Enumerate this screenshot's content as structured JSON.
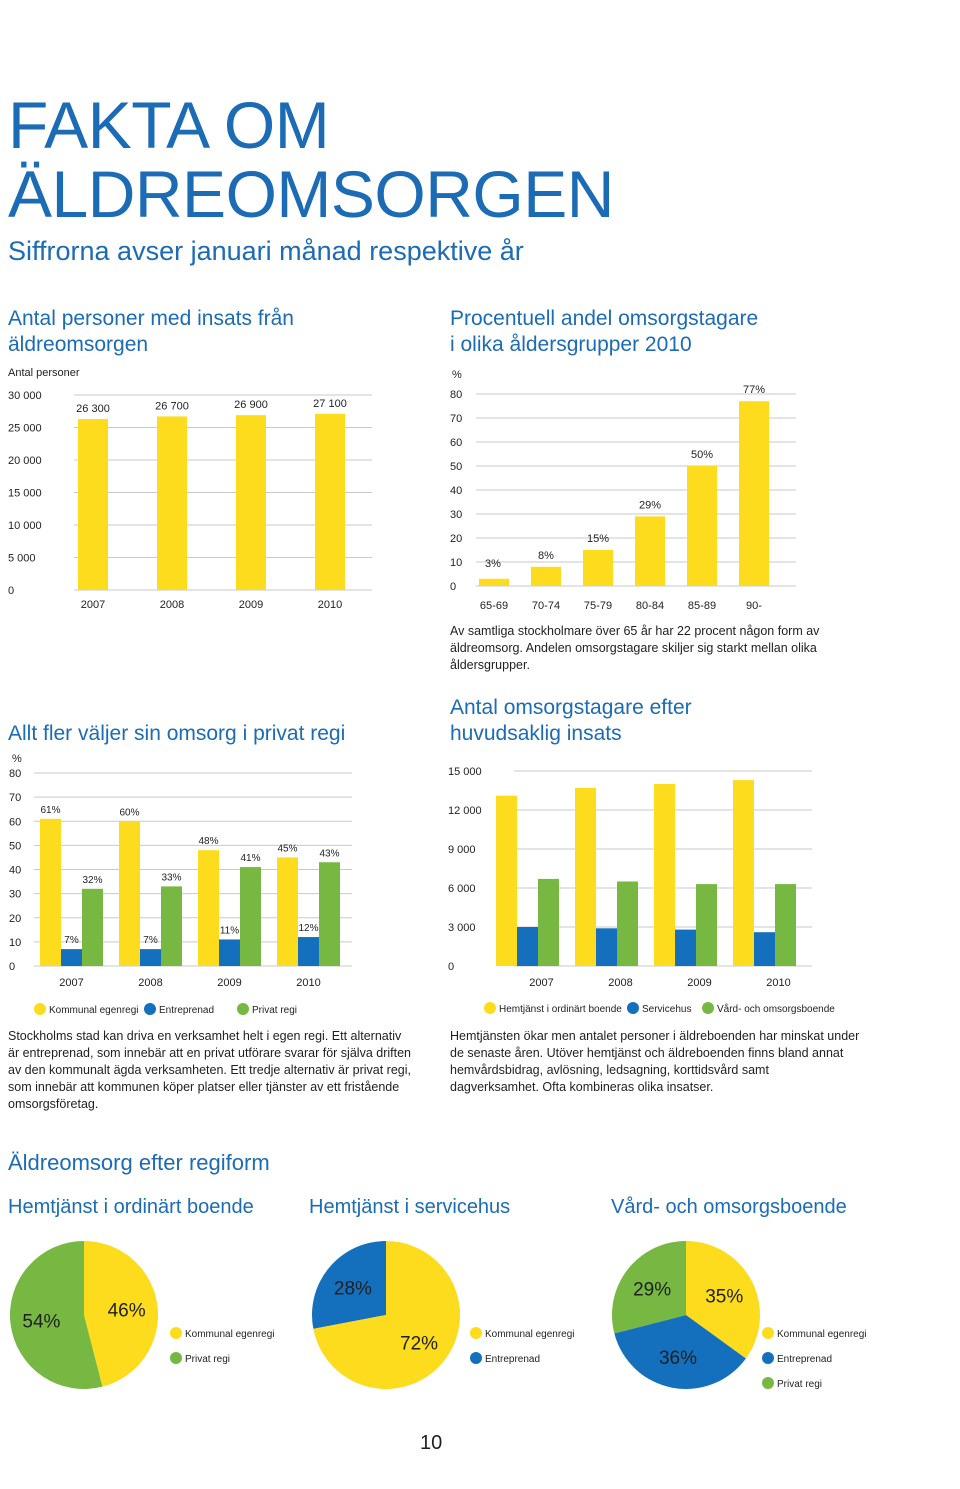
{
  "header": {
    "title_line1": "FAKTA OM",
    "title_line2": "ÄLDREOMSORGEN",
    "subtitle": "Siffrorna avser januari månad respektive år"
  },
  "colors": {
    "yellow": "#fddc1e",
    "blue": "#1470bd",
    "green": "#77b843",
    "accent": "#1b6bb5",
    "grid": "#c9c9c9",
    "text": "#1f1f1f"
  },
  "chart_data": [
    {
      "id": "persons",
      "type": "bar",
      "title_lines": [
        "Antal personer med insats från",
        "äldreomsorgen"
      ],
      "ylabel": "Antal personer",
      "categories": [
        "2007",
        "2008",
        "2009",
        "2010"
      ],
      "values": [
        26300,
        26700,
        26900,
        27100
      ],
      "value_labels": [
        "26 300",
        "26 700",
        "26 900",
        "27 100"
      ],
      "ylim": [
        0,
        30000
      ],
      "ticks": [
        0,
        5000,
        10000,
        15000,
        20000,
        25000,
        30000
      ],
      "tick_labels": [
        "0",
        "5 000",
        "10 000",
        "15 000",
        "20 000",
        "25 000",
        "30 000"
      ]
    },
    {
      "id": "agegroups",
      "type": "bar",
      "title_lines": [
        "Procentuell andel omsorgstagare",
        "i olika åldersgrupper 2010"
      ],
      "ylabel": "%",
      "categories": [
        "65-69",
        "70-74",
        "75-79",
        "80-84",
        "85-89",
        "90-"
      ],
      "values": [
        3,
        8,
        15,
        29,
        50,
        77
      ],
      "value_labels": [
        "3%",
        "8%",
        "15%",
        "29%",
        "50%",
        "77%"
      ],
      "ylim": [
        0,
        80
      ],
      "ticks": [
        0,
        10,
        20,
        30,
        40,
        50,
        60,
        70,
        80
      ],
      "tick_labels": [
        "0",
        "10",
        "20",
        "30",
        "40",
        "50",
        "60",
        "70",
        "80"
      ],
      "note": "Av samtliga stockholmare över 65 år har 22 procent någon form av äldreomsorg. Andelen omsorgstagare skiljer sig starkt mellan olika åldersgrupper."
    },
    {
      "id": "regi",
      "type": "bar",
      "title_lines": [
        "Allt fler väljer sin omsorg i privat regi"
      ],
      "ylabel": "%",
      "categories": [
        "2007",
        "2008",
        "2009",
        "2010"
      ],
      "series": [
        {
          "name": "Kommunal egenregi",
          "values": [
            61,
            60,
            48,
            45
          ],
          "labels": [
            "61%",
            "60%",
            "48%",
            "45%"
          ]
        },
        {
          "name": "Entreprenad",
          "values": [
            7,
            7,
            11,
            12
          ],
          "labels": [
            "7%",
            "7%",
            "11%",
            "12%"
          ]
        },
        {
          "name": "Privat regi",
          "values": [
            32,
            33,
            41,
            43
          ],
          "labels": [
            "32%",
            "33%",
            "41%",
            "43%"
          ]
        }
      ],
      "ylim": [
        0,
        80
      ],
      "ticks": [
        0,
        10,
        20,
        30,
        40,
        50,
        60,
        70,
        80
      ],
      "tick_labels": [
        "0",
        "10",
        "20",
        "30",
        "40",
        "50",
        "60",
        "70",
        "80"
      ],
      "note": "Stockholms stad kan driva en verksamhet helt i egen regi. Ett alternativ är entreprenad, som innebär att en privat utförare svarar för själva driften av den kommunalt ägda verksamheten. Ett tredje alternativ är privat regi, som innebär att kommunen köper platser eller tjänster av ett fristående omsorgsföretag."
    },
    {
      "id": "insats",
      "type": "bar",
      "title_lines": [
        "Antal omsorgstagare efter",
        "huvudsaklig insats"
      ],
      "categories": [
        "2007",
        "2008",
        "2009",
        "2010"
      ],
      "series": [
        {
          "name": "Hemtjänst i ordinärt boende",
          "values": [
            13100,
            13700,
            14000,
            14300
          ]
        },
        {
          "name": "Servicehus",
          "values": [
            3000,
            2900,
            2800,
            2600
          ]
        },
        {
          "name": "Vård- och omsorgsboende",
          "values": [
            6700,
            6500,
            6300,
            6300
          ]
        }
      ],
      "ylim": [
        0,
        15000
      ],
      "ticks": [
        0,
        3000,
        6000,
        9000,
        12000,
        15000
      ],
      "tick_labels": [
        "0",
        "3 000",
        "6 000",
        "9 000",
        "12 000",
        "15 000"
      ],
      "note": "Hemtjänsten ökar men antalet personer i äldreboenden har minskat under de senaste åren. Utöver hemtjänst och äldreboenden finns bland annat hemvårdsbidrag, avlösning, ledsagning, korttidsvård samt dagverksamhet. Ofta kombineras olika insatser."
    },
    {
      "id": "pies",
      "type": "pie",
      "title": "Äldreomsorg efter regiform",
      "pies": [
        {
          "title": "Hemtjänst i ordinärt boende",
          "slices": [
            {
              "name": "Kommunal egenregi",
              "value": 46,
              "label": "46%"
            },
            {
              "name": "Privat regi",
              "value": 54,
              "label": "54%"
            }
          ]
        },
        {
          "title": "Hemtjänst i servicehus",
          "slices": [
            {
              "name": "Entreprenad",
              "value": 28,
              "label": "28%"
            },
            {
              "name": "Kommunal egenregi",
              "value": 72,
              "label": "72%"
            }
          ]
        },
        {
          "title": "Vård- och omsorgsboende",
          "slices": [
            {
              "name": "Kommunal egenregi",
              "value": 35,
              "label": "35%"
            },
            {
              "name": "Entreprenad",
              "value": 36,
              "label": "36%"
            },
            {
              "name": "Privat regi",
              "value": 29,
              "label": "29%"
            }
          ]
        }
      ]
    }
  ],
  "page_number": "10"
}
